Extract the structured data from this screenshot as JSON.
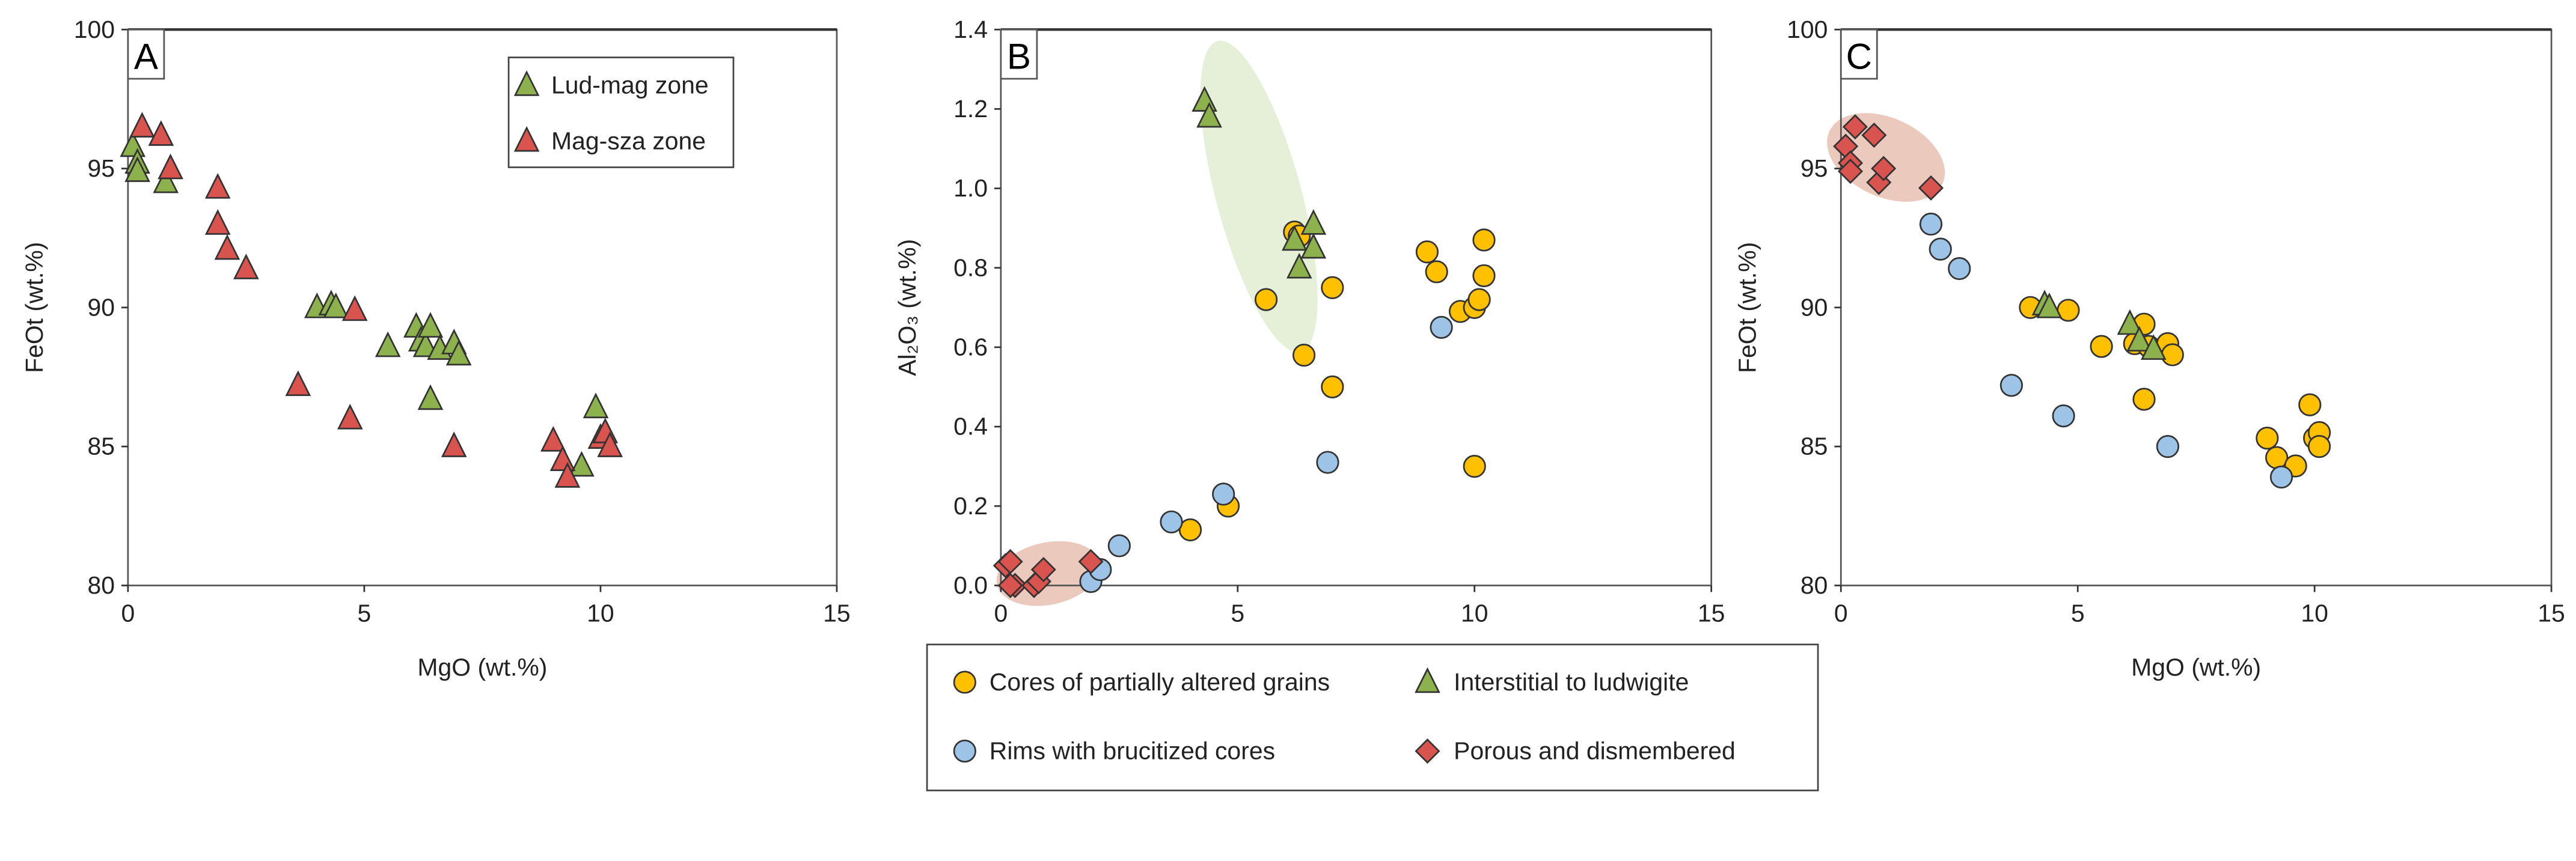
{
  "colors": {
    "cores": "#FFC000",
    "rims": "#9DC3E6",
    "interstitial": "#8DB24D",
    "porous": "#D9534F",
    "lud_mag": "#8DB24D",
    "mag_sza": "#D9534F",
    "green_field": "#E6EFD8",
    "red_field": "#EBCABD"
  },
  "legend_bottom": {
    "cores": "Cores of partially altered grains",
    "interstitial": "Interstitial to ludwigite",
    "rims": "Rims with brucitized cores",
    "porous": "Porous and dismembered"
  },
  "chart_data": [
    {
      "type": "scatter",
      "panel": "A",
      "xlabel": "MgO (wt.%)",
      "ylabel": "FeOt (wt.%)",
      "xlim": [
        0,
        15
      ],
      "ylim": [
        80,
        100
      ],
      "xticks": [
        "0",
        "5",
        "10",
        "15"
      ],
      "yticks": [
        "80",
        "85",
        "90",
        "95",
        "100"
      ],
      "grid": false,
      "legend_position": "top-right",
      "series": [
        {
          "name": "Lud-mag zone",
          "marker": "triangle",
          "color_key": "lud_mag",
          "points": [
            [
              0.1,
              95.8
            ],
            [
              0.2,
              95.2
            ],
            [
              0.2,
              94.9
            ],
            [
              0.8,
              94.5
            ],
            [
              4.0,
              90.0
            ],
            [
              4.3,
              90.1
            ],
            [
              4.4,
              90.0
            ],
            [
              5.5,
              88.6
            ],
            [
              6.1,
              89.3
            ],
            [
              6.2,
              88.8
            ],
            [
              6.3,
              88.6
            ],
            [
              6.4,
              89.3
            ],
            [
              6.6,
              88.5
            ],
            [
              6.9,
              88.7
            ],
            [
              7.0,
              88.3
            ],
            [
              6.4,
              86.7
            ],
            [
              9.9,
              86.4
            ],
            [
              9.6,
              84.3
            ]
          ]
        },
        {
          "name": "Mag-sza zone",
          "marker": "triangle",
          "color_key": "mag_sza",
          "points": [
            [
              0.3,
              96.5
            ],
            [
              0.7,
              96.2
            ],
            [
              0.9,
              95.0
            ],
            [
              1.9,
              94.3
            ],
            [
              1.9,
              93.0
            ],
            [
              2.1,
              92.1
            ],
            [
              2.5,
              91.4
            ],
            [
              4.8,
              89.9
            ],
            [
              3.6,
              87.2
            ],
            [
              4.7,
              86.0
            ],
            [
              6.9,
              85.0
            ],
            [
              9.0,
              85.2
            ],
            [
              9.2,
              84.5
            ],
            [
              9.3,
              83.9
            ],
            [
              10.0,
              85.3
            ],
            [
              10.1,
              85.5
            ],
            [
              10.2,
              85.0
            ]
          ]
        }
      ]
    },
    {
      "type": "scatter",
      "panel": "B",
      "xlabel": "MgO (wt.%)",
      "ylabel": "Al₂O₃ (wt.%)",
      "xlim": [
        0,
        15
      ],
      "ylim": [
        0,
        1.4
      ],
      "xticks": [
        "0",
        "5",
        "10",
        "15"
      ],
      "yticks": [
        "0.0",
        "0.2",
        "0.4",
        "0.6",
        "0.8",
        "1.0",
        "1.2",
        "1.4"
      ],
      "grid": false,
      "series": [
        {
          "name": "Cores of partially altered grains",
          "marker": "circle",
          "color_key": "cores",
          "points": [
            [
              6.2,
              0.89
            ],
            [
              6.3,
              0.88
            ],
            [
              6.4,
              0.58
            ],
            [
              5.6,
              0.72
            ],
            [
              7.0,
              0.75
            ],
            [
              7.0,
              0.5
            ],
            [
              9.0,
              0.84
            ],
            [
              9.2,
              0.79
            ],
            [
              9.7,
              0.69
            ],
            [
              10.0,
              0.7
            ],
            [
              10.1,
              0.72
            ],
            [
              10.2,
              0.87
            ],
            [
              10.2,
              0.78
            ],
            [
              10.0,
              0.3
            ],
            [
              4.0,
              0.14
            ],
            [
              4.8,
              0.2
            ]
          ]
        },
        {
          "name": "Rims with brucitized cores",
          "marker": "circle",
          "color_key": "rims",
          "points": [
            [
              1.9,
              0.01
            ],
            [
              2.1,
              0.04
            ],
            [
              2.5,
              0.1
            ],
            [
              3.6,
              0.16
            ],
            [
              4.7,
              0.23
            ],
            [
              6.9,
              0.31
            ],
            [
              9.3,
              0.65
            ]
          ]
        },
        {
          "name": "Interstitial to ludwigite",
          "marker": "triangle",
          "color_key": "interstitial",
          "points": [
            [
              4.3,
              1.22
            ],
            [
              4.4,
              1.18
            ],
            [
              6.2,
              0.87
            ],
            [
              6.3,
              0.8
            ],
            [
              6.6,
              0.91
            ],
            [
              6.6,
              0.85
            ]
          ]
        },
        {
          "name": "Porous and dismembered",
          "marker": "diamond",
          "color_key": "porous",
          "points": [
            [
              0.1,
              0.05
            ],
            [
              0.2,
              0.06
            ],
            [
              0.3,
              0.0
            ],
            [
              0.2,
              0.0
            ],
            [
              0.7,
              0.0
            ],
            [
              0.8,
              0.01
            ],
            [
              0.9,
              0.04
            ],
            [
              1.9,
              0.06
            ]
          ]
        }
      ]
    },
    {
      "type": "scatter",
      "panel": "C",
      "xlabel": "MgO (wt.%)",
      "ylabel": "FeOt (wt.%)",
      "xlim": [
        0,
        15
      ],
      "ylim": [
        80,
        100
      ],
      "xticks": [
        "0",
        "5",
        "10",
        "15"
      ],
      "yticks": [
        "80",
        "85",
        "90",
        "95",
        "100"
      ],
      "grid": false,
      "series": [
        {
          "name": "Cores of partially altered grains",
          "marker": "circle",
          "color_key": "cores",
          "points": [
            [
              4.0,
              90.0
            ],
            [
              4.8,
              89.9
            ],
            [
              5.5,
              88.6
            ],
            [
              6.2,
              88.7
            ],
            [
              6.4,
              89.4
            ],
            [
              6.5,
              88.6
            ],
            [
              6.9,
              88.7
            ],
            [
              7.0,
              88.3
            ],
            [
              6.4,
              86.7
            ],
            [
              9.0,
              85.3
            ],
            [
              9.2,
              84.6
            ],
            [
              9.6,
              84.3
            ],
            [
              9.9,
              86.5
            ],
            [
              10.0,
              85.3
            ],
            [
              10.1,
              85.5
            ],
            [
              10.1,
              85.0
            ]
          ]
        },
        {
          "name": "Rims with brucitized cores",
          "marker": "circle",
          "color_key": "rims",
          "points": [
            [
              1.9,
              93.0
            ],
            [
              2.1,
              92.1
            ],
            [
              2.5,
              91.4
            ],
            [
              3.6,
              87.2
            ],
            [
              4.7,
              86.1
            ],
            [
              6.9,
              85.0
            ],
            [
              9.3,
              83.9
            ]
          ]
        },
        {
          "name": "Interstitial to ludwigite",
          "marker": "triangle",
          "color_key": "interstitial",
          "points": [
            [
              4.3,
              90.1
            ],
            [
              4.4,
              90.0
            ],
            [
              6.1,
              89.4
            ],
            [
              6.3,
              88.8
            ],
            [
              6.6,
              88.5
            ]
          ]
        },
        {
          "name": "Porous and dismembered",
          "marker": "diamond",
          "color_key": "porous",
          "points": [
            [
              0.1,
              95.8
            ],
            [
              0.2,
              95.2
            ],
            [
              0.2,
              94.9
            ],
            [
              0.3,
              96.5
            ],
            [
              0.7,
              96.2
            ],
            [
              0.8,
              94.5
            ],
            [
              0.9,
              95.0
            ],
            [
              1.9,
              94.3
            ]
          ]
        }
      ]
    }
  ]
}
